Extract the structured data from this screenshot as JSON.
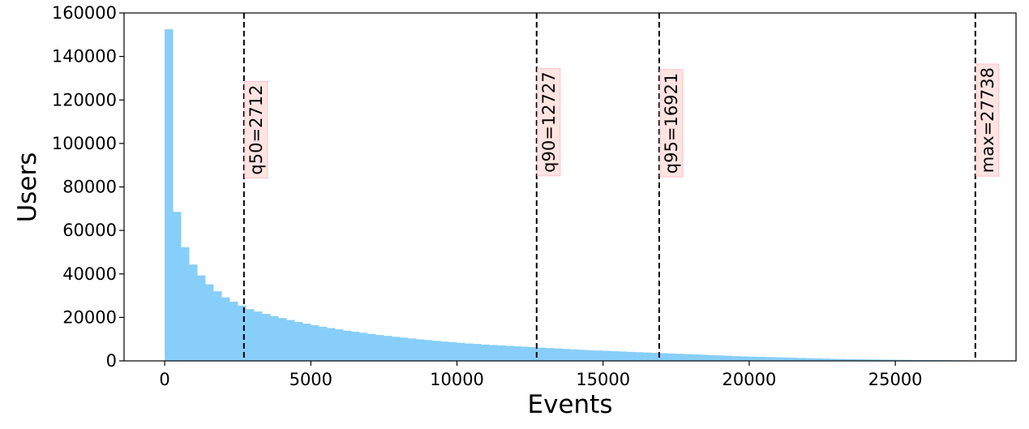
{
  "chart_data": {
    "type": "bar",
    "title": "",
    "xlabel": "Events",
    "ylabel": "Users",
    "xlim": [
      -1390,
      29130
    ],
    "ylim": [
      0,
      160000
    ],
    "xticks": [
      0,
      5000,
      10000,
      15000,
      20000,
      25000
    ],
    "xtick_labels": [
      "0",
      "5000",
      "10000",
      "15000",
      "20000",
      "25000"
    ],
    "yticks": [
      0,
      20000,
      40000,
      60000,
      80000,
      100000,
      120000,
      140000,
      160000
    ],
    "ytick_labels": [
      "0",
      "20000",
      "40000",
      "60000",
      "80000",
      "100000",
      "120000",
      "140000",
      "160000"
    ],
    "grid": false,
    "bar_color": "#87CEFA",
    "bin_start": 0,
    "bin_width": 277.38,
    "values": [
      152500,
      68500,
      52300,
      44300,
      39300,
      35200,
      32000,
      29200,
      27200,
      25400,
      23800,
      22700,
      21600,
      20600,
      19700,
      18800,
      17900,
      17100,
      16400,
      15700,
      15100,
      14500,
      13900,
      13400,
      12900,
      12400,
      11900,
      11500,
      11100,
      10700,
      10300,
      9900,
      9600,
      9200,
      8900,
      8600,
      8300,
      8000,
      7800,
      7500,
      7300,
      7100,
      6900,
      6700,
      6500,
      6300,
      6100,
      5900,
      5700,
      5500,
      5300,
      5100,
      4900,
      4750,
      4600,
      4450,
      4300,
      4150,
      4000,
      3850,
      3700,
      3550,
      3400,
      3250,
      3100,
      2950,
      2800,
      2650,
      2500,
      2350,
      2200,
      2050,
      1950,
      1850,
      1750,
      1650,
      1550,
      1450,
      1350,
      1250,
      1150,
      1050,
      950,
      870,
      800,
      740,
      680,
      630,
      580,
      540,
      500,
      460,
      420,
      390,
      360,
      330,
      300,
      270,
      240,
      200
    ],
    "vlines": [
      {
        "x": 2712,
        "label": "q50=2712"
      },
      {
        "x": 12727,
        "label": "q90=12727"
      },
      {
        "x": 16921,
        "label": "q95=16921"
      },
      {
        "x": 27738,
        "label": "max=27738"
      }
    ],
    "vline_label_y": [
      127000,
      133000,
      132500,
      135000
    ],
    "vline_label_style": {
      "background": "#FFE4E1",
      "border": "#FFC0CB"
    }
  }
}
